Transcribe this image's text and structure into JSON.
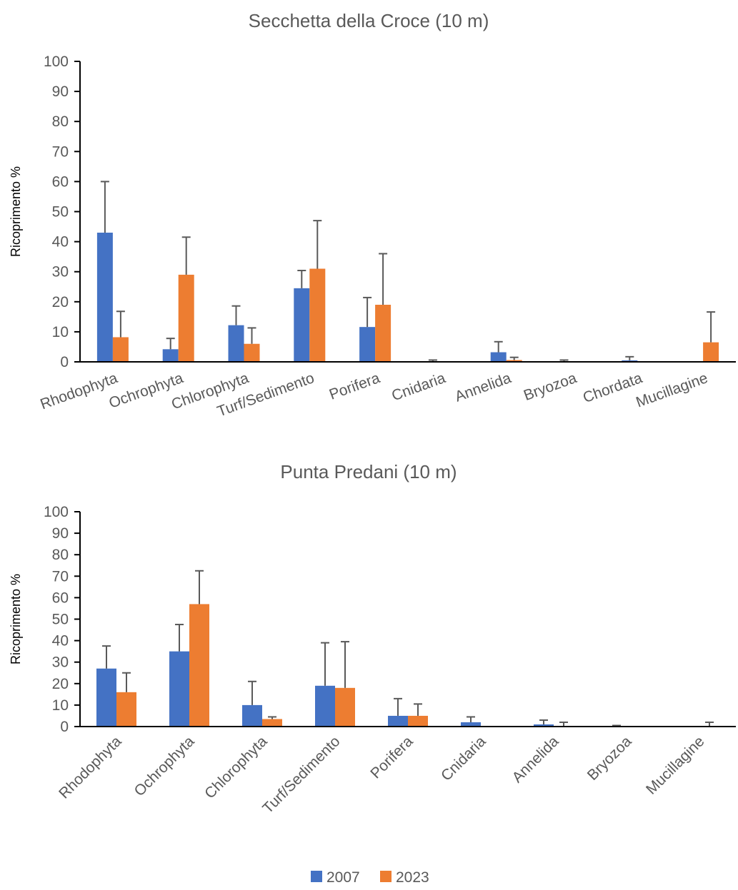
{
  "colors": {
    "s2007": "#4472C4",
    "s2023": "#ED7D31",
    "axis": "#000000",
    "error": "#595959"
  },
  "legend": {
    "items": [
      {
        "label": "2007"
      },
      {
        "label": "2023"
      }
    ]
  },
  "chart_data": [
    {
      "type": "bar",
      "title": "Secchetta della Croce (10 m)",
      "xlabel": "",
      "ylabel": "Ricoprimento %",
      "ylim": [
        0,
        100
      ],
      "yticks": [
        "0",
        "10",
        "20",
        "30",
        "40",
        "50",
        "60",
        "70",
        "80",
        "90",
        "100"
      ],
      "categories": [
        "Rhodophyta",
        "Ochrophyta",
        "Chlorophyta",
        "Turf/Sedimento",
        "Porifera",
        "Cnidaria",
        "Annelida",
        "Bryozoa",
        "Chordata",
        "Mucillagine"
      ],
      "series": [
        {
          "name": "2007",
          "values": [
            43,
            4.2,
            12.2,
            24.5,
            11.6,
            0,
            3.2,
            0,
            0.5,
            0
          ],
          "error_upper": [
            60,
            7.8,
            18.6,
            30.4,
            21.4,
            0.6,
            6.7,
            0.6,
            1.7,
            0
          ]
        },
        {
          "name": "2023",
          "values": [
            8.2,
            29,
            6,
            31,
            19,
            0,
            0.6,
            0,
            0,
            6.5
          ],
          "error_upper": [
            16.8,
            41.5,
            11.3,
            47,
            36,
            0,
            1.5,
            0,
            0,
            16.6
          ]
        }
      ],
      "legend_position": "bottom"
    },
    {
      "type": "bar",
      "title": "Punta Predani (10 m)",
      "xlabel": "",
      "ylabel": "Ricoprimento %",
      "ylim": [
        0,
        100
      ],
      "yticks": [
        "0",
        "10",
        "20",
        "30",
        "40",
        "50",
        "60",
        "70",
        "80",
        "90",
        "100"
      ],
      "categories": [
        "Rhodophyta",
        "Ochrophyta",
        "Chlorophyta",
        "Turf/Sedimento",
        "Porifera",
        "Cnidaria",
        "Annelida",
        "Bryozoa",
        "Mucillagine"
      ],
      "series": [
        {
          "name": "2007",
          "values": [
            27,
            35,
            10,
            19,
            5,
            2,
            1,
            0,
            0
          ],
          "error_upper": [
            37.5,
            47.5,
            21,
            39,
            13,
            4.5,
            3,
            0.5,
            0
          ]
        },
        {
          "name": "2023",
          "values": [
            16,
            57,
            3.5,
            18,
            5,
            0,
            0.3,
            0,
            0.3
          ],
          "error_upper": [
            25,
            72.5,
            4.5,
            39.5,
            10.5,
            0,
            2,
            0,
            2
          ]
        }
      ],
      "legend_position": "bottom"
    }
  ]
}
